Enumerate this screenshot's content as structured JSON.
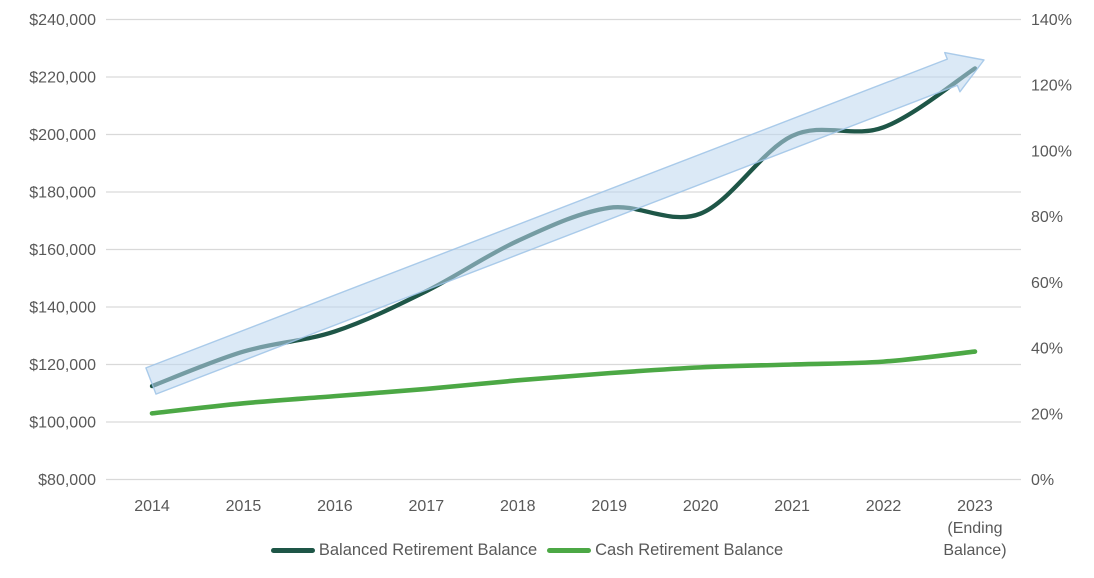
{
  "chart_data": {
    "type": "line",
    "title": "",
    "categories": [
      "2014",
      "2015",
      "2016",
      "2017",
      "2018",
      "2019",
      "2020",
      "2021",
      "2022",
      "2023 (Ending Balance)"
    ],
    "x_labels": [
      [
        "2014"
      ],
      [
        "2015"
      ],
      [
        "2016"
      ],
      [
        "2017"
      ],
      [
        "2018"
      ],
      [
        "2019"
      ],
      [
        "2020"
      ],
      [
        "2021"
      ],
      [
        "2022"
      ],
      [
        "2023",
        "(Ending",
        "Balance)"
      ]
    ],
    "series": [
      {
        "id": "balanced",
        "name": "Balanced Retirement Balance",
        "color": "#1E5647",
        "stroke_width": 4.3,
        "values": [
          112500,
          124500,
          131500,
          145500,
          163000,
          174500,
          172500,
          199500,
          202500,
          223000
        ]
      },
      {
        "id": "cash",
        "name": "Cash Retirement Balance",
        "color": "#4CA845",
        "stroke_width": 4.6,
        "values": [
          103000,
          106500,
          109000,
          111500,
          114500,
          117000,
          119000,
          120000,
          121000,
          124500
        ]
      }
    ],
    "left_axis": {
      "min": 80000,
      "max": 240000,
      "step": 20000,
      "tick_labels": [
        "$80,000",
        "$100,000",
        "$120,000",
        "$140,000",
        "$160,000",
        "$180,000",
        "$200,000",
        "$220,000",
        "$240,000"
      ]
    },
    "right_axis": {
      "min": 0,
      "max": 140,
      "step": 20,
      "unit": "%",
      "tick_labels": [
        "0%",
        "20%",
        "40%",
        "60%",
        "80%",
        "100%",
        "120%",
        "140%"
      ]
    },
    "gridlines": true,
    "legend_position": "bottom",
    "annotations": [
      {
        "type": "block-arrow",
        "meaning": "upward growth trend across chart",
        "fill": "#BDD7EE",
        "fill_opacity": 0.55,
        "border": "#9DC3E6"
      }
    ]
  },
  "colors": {
    "axis_text": "#595959",
    "gridline": "#D9D9D9",
    "background": "#FFFFFF"
  }
}
